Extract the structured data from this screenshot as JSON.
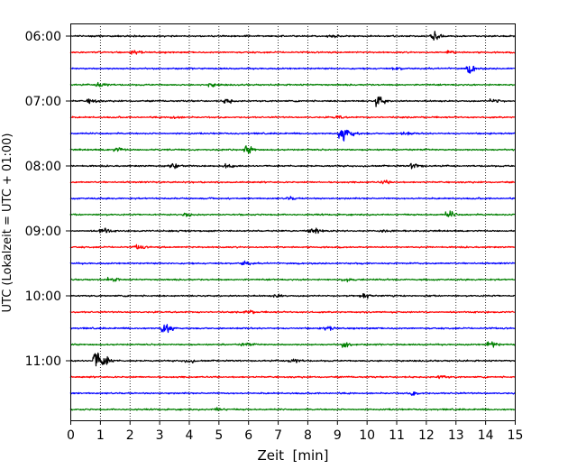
{
  "chart_data": {
    "type": "line",
    "xlabel": "Zeit  [min]",
    "ylabel": "UTC (Lokalzeit = UTC + 01:00)",
    "xlim": [
      0,
      15
    ],
    "x_ticks": [
      "0",
      "1",
      "2",
      "3",
      "4",
      "5",
      "6",
      "7",
      "8",
      "9",
      "10",
      "11",
      "12",
      "13",
      "14",
      "15"
    ],
    "y_tick_labels": [
      "06:00",
      "07:00",
      "08:00",
      "09:00",
      "10:00",
      "11:00"
    ],
    "grid": "vertical dotted",
    "trace_interval_minutes": 15,
    "color_cycle": [
      "#000000",
      "#ff0000",
      "#0000ff",
      "#008000"
    ],
    "traces": [
      {
        "start": "06:00",
        "color": "#000000",
        "events": [
          {
            "t": 12.3,
            "amp": 7
          },
          {
            "t": 8.8,
            "amp": 2
          }
        ]
      },
      {
        "start": "06:15",
        "color": "#ff0000",
        "events": [
          {
            "t": 2.2,
            "amp": 2.5
          },
          {
            "t": 12.8,
            "amp": 2
          }
        ]
      },
      {
        "start": "06:30",
        "color": "#0000ff",
        "events": [
          {
            "t": 13.5,
            "amp": 6
          },
          {
            "t": 11.0,
            "amp": 2
          }
        ]
      },
      {
        "start": "06:45",
        "color": "#008000",
        "events": [
          {
            "t": 1.0,
            "amp": 5
          },
          {
            "t": 4.8,
            "amp": 2
          }
        ]
      },
      {
        "start": "07:00",
        "color": "#000000",
        "events": [
          {
            "t": 10.4,
            "amp": 8
          },
          {
            "t": 0.7,
            "amp": 3
          },
          {
            "t": 5.3,
            "amp": 3
          },
          {
            "t": 14.3,
            "amp": 3
          }
        ]
      },
      {
        "start": "07:15",
        "color": "#ff0000",
        "events": [
          {
            "t": 3.5,
            "amp": 2
          },
          {
            "t": 9.0,
            "amp": 2
          }
        ]
      },
      {
        "start": "07:30",
        "color": "#0000ff",
        "events": [
          {
            "t": 9.2,
            "amp": 9
          },
          {
            "t": 11.3,
            "amp": 2
          }
        ]
      },
      {
        "start": "07:45",
        "color": "#008000",
        "events": [
          {
            "t": 6.0,
            "amp": 5
          },
          {
            "t": 1.6,
            "amp": 3
          }
        ]
      },
      {
        "start": "08:00",
        "color": "#000000",
        "events": [
          {
            "t": 3.5,
            "amp": 4
          },
          {
            "t": 5.3,
            "amp": 3
          },
          {
            "t": 11.6,
            "amp": 4
          }
        ]
      },
      {
        "start": "08:15",
        "color": "#ff0000",
        "events": [
          {
            "t": 10.6,
            "amp": 2
          }
        ]
      },
      {
        "start": "08:30",
        "color": "#0000ff",
        "events": [
          {
            "t": 7.4,
            "amp": 2
          }
        ]
      },
      {
        "start": "08:45",
        "color": "#008000",
        "events": [
          {
            "t": 12.8,
            "amp": 4
          },
          {
            "t": 3.9,
            "amp": 2
          }
        ]
      },
      {
        "start": "09:00",
        "color": "#000000",
        "events": [
          {
            "t": 1.1,
            "amp": 4
          },
          {
            "t": 8.2,
            "amp": 6
          },
          {
            "t": 10.5,
            "amp": 2
          }
        ]
      },
      {
        "start": "09:15",
        "color": "#ff0000",
        "events": [
          {
            "t": 2.3,
            "amp": 2.5
          }
        ]
      },
      {
        "start": "09:30",
        "color": "#0000ff",
        "events": [
          {
            "t": 5.9,
            "amp": 3
          }
        ]
      },
      {
        "start": "09:45",
        "color": "#008000",
        "events": [
          {
            "t": 1.4,
            "amp": 2.5
          },
          {
            "t": 9.3,
            "amp": 2
          }
        ]
      },
      {
        "start": "10:00",
        "color": "#000000",
        "events": [
          {
            "t": 9.9,
            "amp": 4
          },
          {
            "t": 7.0,
            "amp": 2
          }
        ]
      },
      {
        "start": "10:15",
        "color": "#ff0000",
        "events": [
          {
            "t": 6.0,
            "amp": 2
          }
        ]
      },
      {
        "start": "10:30",
        "color": "#0000ff",
        "events": [
          {
            "t": 3.2,
            "amp": 8
          },
          {
            "t": 8.7,
            "amp": 3
          }
        ]
      },
      {
        "start": "10:45",
        "color": "#008000",
        "events": [
          {
            "t": 14.2,
            "amp": 5
          },
          {
            "t": 9.3,
            "amp": 4
          },
          {
            "t": 5.9,
            "amp": 2
          }
        ]
      },
      {
        "start": "11:00",
        "color": "#000000",
        "events": [
          {
            "t": 0.9,
            "amp": 14
          },
          {
            "t": 7.5,
            "amp": 4
          },
          {
            "t": 4.0,
            "amp": 2
          }
        ]
      },
      {
        "start": "11:15",
        "color": "#ff0000",
        "events": [
          {
            "t": 12.5,
            "amp": 2
          }
        ]
      },
      {
        "start": "11:30",
        "color": "#0000ff",
        "events": [
          {
            "t": 11.6,
            "amp": 3
          }
        ]
      },
      {
        "start": "11:45",
        "color": "#008000",
        "events": [
          {
            "t": 5.0,
            "amp": 2
          }
        ]
      }
    ]
  }
}
